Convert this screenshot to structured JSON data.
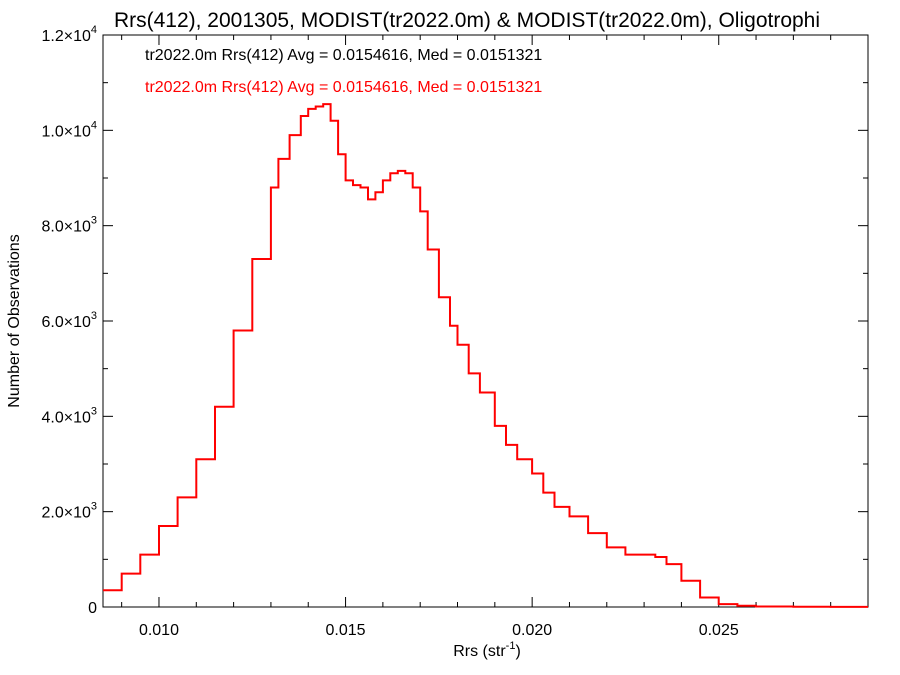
{
  "chart_data": {
    "type": "line",
    "title": "Rrs(412), 2001305, MODIST(tr2022.0m) & MODIST(tr2022.0m), Oligotrophi",
    "xlabel": "Rrs (str",
    "xlabel_sup": "-1",
    "xlabel_end": ")",
    "ylabel": "Number of Observations",
    "xlim": [
      0.0085,
      0.029
    ],
    "ylim": [
      0,
      12000
    ],
    "x_ticks": [
      {
        "value": 0.01,
        "label": "0.010"
      },
      {
        "value": 0.015,
        "label": "0.015"
      },
      {
        "value": 0.02,
        "label": "0.020"
      },
      {
        "value": 0.025,
        "label": "0.025"
      }
    ],
    "y_ticks": [
      {
        "value": 0,
        "mant": "0",
        "exp": ""
      },
      {
        "value": 2000,
        "mant": "2.0×10",
        "exp": "3"
      },
      {
        "value": 4000,
        "mant": "4.0×10",
        "exp": "3"
      },
      {
        "value": 6000,
        "mant": "6.0×10",
        "exp": "3"
      },
      {
        "value": 8000,
        "mant": "8.0×10",
        "exp": "3"
      },
      {
        "value": 10000,
        "mant": "1.0×10",
        "exp": "4"
      },
      {
        "value": 12000,
        "mant": "1.2×10",
        "exp": "4"
      }
    ],
    "annotations": [
      {
        "text": "tr2022.0m Rrs(412) Avg = 0.0154616, Med = 0.0151321",
        "color": "#000000"
      },
      {
        "text": "tr2022.0m Rrs(412) Avg = 0.0154616, Med = 0.0151321",
        "color": "#ff0000"
      }
    ],
    "series": [
      {
        "color": "#ff0000",
        "step": true,
        "x": [
          0.0085,
          0.009,
          0.0095,
          0.01,
          0.0105,
          0.011,
          0.0115,
          0.012,
          0.0125,
          0.013,
          0.0132,
          0.0135,
          0.0138,
          0.014,
          0.0142,
          0.0144,
          0.0146,
          0.0148,
          0.015,
          0.0152,
          0.0154,
          0.0156,
          0.0158,
          0.016,
          0.0162,
          0.0164,
          0.0166,
          0.0168,
          0.017,
          0.0172,
          0.0175,
          0.0178,
          0.018,
          0.0183,
          0.0186,
          0.019,
          0.0193,
          0.0196,
          0.02,
          0.0203,
          0.0206,
          0.021,
          0.0215,
          0.022,
          0.0225,
          0.023,
          0.0233,
          0.0236,
          0.024,
          0.0245,
          0.025,
          0.0255,
          0.026,
          0.027,
          0.028,
          0.029
        ],
        "y": [
          350,
          700,
          1100,
          1700,
          2300,
          3100,
          4200,
          5800,
          7300,
          8800,
          9400,
          9900,
          10300,
          10450,
          10500,
          10550,
          10200,
          9500,
          8950,
          8850,
          8800,
          8550,
          8700,
          8950,
          9100,
          9150,
          9100,
          8800,
          8300,
          7500,
          6500,
          5900,
          5500,
          4900,
          4500,
          3800,
          3400,
          3100,
          2800,
          2400,
          2100,
          1900,
          1550,
          1250,
          1100,
          1100,
          1050,
          900,
          550,
          200,
          60,
          25,
          10,
          5,
          3,
          3
        ]
      }
    ]
  }
}
